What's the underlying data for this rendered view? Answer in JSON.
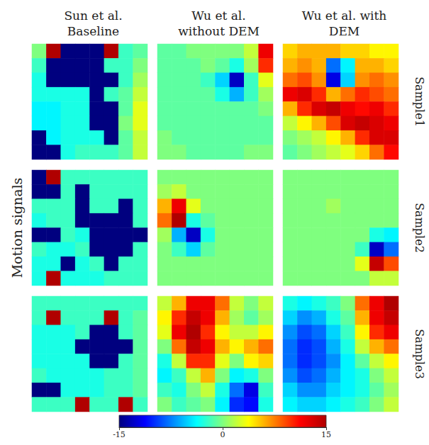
{
  "chart_data": {
    "type": "heatmap",
    "column_titles": [
      "Sun et al. Baseline",
      "Wu et al. without DEM",
      "Wu et al. with DEM"
    ],
    "row_titles": [
      "Sample1",
      "Sample2",
      "Sample3"
    ],
    "y_label": "Motion signals",
    "tick_labels": false,
    "colorbar": {
      "range": [
        -15,
        15
      ],
      "ticks": [
        -15,
        0,
        15
      ]
    },
    "cells": [
      [
        [
          [
            0,
            15,
            -20,
            -20,
            -20,
            15,
            -2,
            -1
          ],
          [
            -2,
            -20,
            -20,
            -20,
            -20,
            -2,
            -2,
            0
          ],
          [
            -3,
            -20,
            -20,
            -20,
            -20,
            -20,
            -2,
            1
          ],
          [
            -3,
            -3,
            -3,
            -3,
            -20,
            -2,
            -1,
            2
          ],
          [
            -4,
            -4,
            -3,
            -3,
            -20,
            -20,
            -1,
            3
          ],
          [
            -4,
            -4,
            -3,
            -3,
            -20,
            -20,
            0,
            3
          ],
          [
            -20,
            -4,
            -3,
            -3,
            -3,
            -20,
            -1,
            2
          ],
          [
            -20,
            -20,
            -3,
            -2,
            -2,
            -2,
            -1,
            2
          ]
        ],
        [
          [
            -1,
            -1,
            0,
            0,
            0,
            0,
            2,
            12
          ],
          [
            -1,
            -1,
            -1,
            0,
            -1,
            -3,
            1,
            10
          ],
          [
            -1,
            -1,
            -1,
            -2,
            -5,
            -13,
            -2,
            3
          ],
          [
            -1,
            -1,
            -1,
            -1,
            -3,
            -6,
            -2,
            1
          ],
          [
            -1,
            -1,
            -1,
            -1,
            -1,
            -1,
            -1,
            0
          ],
          [
            -1,
            -1,
            -1,
            -1,
            -1,
            -1,
            -1,
            -1
          ],
          [
            0,
            -1,
            -1,
            -1,
            -1,
            -1,
            -1,
            -1
          ],
          [
            0,
            0,
            -1,
            -1,
            -1,
            -1,
            0,
            0
          ]
        ],
        [
          [
            5,
            6,
            6,
            6,
            5,
            5,
            4,
            4
          ],
          [
            6,
            7,
            6,
            -8,
            -4,
            6,
            6,
            5
          ],
          [
            8,
            9,
            7,
            -12,
            -5,
            7,
            8,
            7
          ],
          [
            12,
            13,
            10,
            6,
            8,
            10,
            9,
            8
          ],
          [
            6,
            10,
            13,
            14,
            12,
            11,
            12,
            10
          ],
          [
            2,
            4,
            6,
            9,
            13,
            14,
            13,
            12
          ],
          [
            0,
            1,
            2,
            4,
            6,
            10,
            13,
            13
          ],
          [
            -1,
            0,
            1,
            2,
            3,
            5,
            8,
            11
          ]
        ]
      ],
      [
        [
          [
            -20,
            15,
            -2,
            -2,
            -2,
            -2,
            -2,
            -2
          ],
          [
            -20,
            -20,
            -2,
            -20,
            -2,
            -2,
            -2,
            -2
          ],
          [
            -2,
            -2,
            -2,
            -20,
            -2,
            -2,
            -20,
            -2
          ],
          [
            -3,
            -2,
            -2,
            -20,
            -20,
            -20,
            -20,
            -2
          ],
          [
            -20,
            -20,
            -2,
            -3,
            -20,
            -20,
            -20,
            -20
          ],
          [
            -2,
            -3,
            -3,
            -2,
            -20,
            -20,
            -20,
            -2
          ],
          [
            -3,
            -3,
            -20,
            -3,
            -2,
            -20,
            -2,
            -2
          ],
          [
            -3,
            15,
            -3,
            -3,
            -3,
            -2,
            -2,
            -2
          ]
        ],
        [
          [
            0,
            0,
            0,
            0,
            0,
            0,
            0,
            0
          ],
          [
            1,
            2,
            0,
            0,
            0,
            0,
            0,
            0
          ],
          [
            6,
            12,
            3,
            0,
            0,
            0,
            0,
            0
          ],
          [
            8,
            15,
            -3,
            -1,
            0,
            0,
            0,
            0
          ],
          [
            1,
            -6,
            -13,
            -3,
            0,
            0,
            0,
            0
          ],
          [
            0,
            -2,
            -5,
            -1,
            0,
            0,
            0,
            0
          ],
          [
            0,
            0,
            0,
            0,
            0,
            0,
            0,
            0
          ],
          [
            0,
            0,
            0,
            0,
            0,
            0,
            0,
            0
          ]
        ],
        [
          [
            0,
            0,
            0,
            0,
            0,
            0,
            0,
            0
          ],
          [
            0,
            0,
            0,
            0,
            0,
            0,
            0,
            0
          ],
          [
            0,
            0,
            0,
            1,
            0,
            0,
            0,
            0
          ],
          [
            0,
            0,
            0,
            0,
            0,
            0,
            0,
            0
          ],
          [
            0,
            0,
            0,
            0,
            0,
            0,
            -3,
            -4
          ],
          [
            0,
            0,
            0,
            0,
            0,
            -2,
            -13,
            -8
          ],
          [
            0,
            0,
            0,
            0,
            0,
            3,
            14,
            9
          ],
          [
            0,
            0,
            0,
            0,
            0,
            0,
            2,
            2
          ]
        ]
      ],
      [
        [
          [
            -2,
            -2,
            -2,
            -2,
            -2,
            -2,
            -2,
            -2
          ],
          [
            -2,
            15,
            -2,
            -2,
            -2,
            15,
            -2,
            -1
          ],
          [
            -3,
            -3,
            -3,
            -2,
            -20,
            -20,
            -2,
            -1
          ],
          [
            -3,
            -3,
            -3,
            -20,
            -20,
            -20,
            -20,
            -1
          ],
          [
            -3,
            -3,
            -3,
            -3,
            -20,
            -20,
            -2,
            -1
          ],
          [
            -2,
            -3,
            -3,
            -3,
            -3,
            -2,
            -2,
            -1
          ],
          [
            -20,
            -20,
            -3,
            -3,
            -3,
            -2,
            -2,
            -1
          ],
          [
            -2,
            -2,
            -2,
            15,
            -2,
            -2,
            15,
            -2
          ]
        ],
        [
          [
            2,
            6,
            12,
            12,
            8,
            2,
            0,
            2
          ],
          [
            4,
            10,
            14,
            12,
            6,
            1,
            -1,
            1
          ],
          [
            3,
            12,
            15,
            10,
            4,
            2,
            2,
            4
          ],
          [
            0,
            8,
            14,
            12,
            6,
            4,
            6,
            8
          ],
          [
            -3,
            2,
            10,
            10,
            3,
            0,
            4,
            5
          ],
          [
            -4,
            -2,
            2,
            6,
            0,
            -4,
            -3,
            0
          ],
          [
            -2,
            -3,
            0,
            2,
            -3,
            -8,
            -12,
            -2
          ],
          [
            0,
            -2,
            -1,
            0,
            -4,
            -10,
            -11,
            -3
          ]
        ],
        [
          [
            -3,
            -4,
            -3,
            -2,
            0,
            8,
            12,
            15
          ],
          [
            -5,
            -7,
            -6,
            -3,
            -1,
            6,
            12,
            14
          ],
          [
            -7,
            -9,
            -8,
            -5,
            -2,
            4,
            10,
            12
          ],
          [
            -8,
            -10,
            -9,
            -6,
            -3,
            2,
            6,
            8
          ],
          [
            -8,
            -10,
            -9,
            -7,
            -4,
            -1,
            2,
            4
          ],
          [
            -7,
            -9,
            -8,
            -6,
            -4,
            -3,
            0,
            2
          ],
          [
            -5,
            -7,
            -7,
            -5,
            -4,
            -3,
            -1,
            1
          ],
          [
            -4,
            -5,
            -5,
            -4,
            -3,
            -2,
            0,
            2
          ]
        ]
      ]
    ]
  }
}
